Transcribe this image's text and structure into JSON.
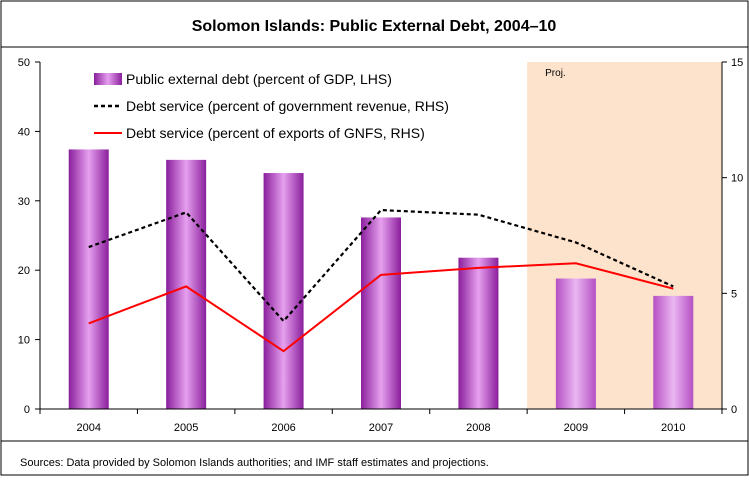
{
  "chart_data": {
    "type": "bar",
    "title": "Solomon Islands: Public External Debt, 2004–10",
    "categories": [
      "2004",
      "2005",
      "2006",
      "2007",
      "2008",
      "2009",
      "2010"
    ],
    "left_axis": {
      "min": 0,
      "max": 50,
      "ticks": [
        "0",
        "10",
        "20",
        "30",
        "40",
        "50"
      ]
    },
    "right_axis": {
      "min": 0,
      "max": 15,
      "ticks": [
        "0",
        "5",
        "10",
        "15"
      ]
    },
    "projection": {
      "label": "Proj.",
      "from_category": "2009",
      "color": "#fde3cc"
    },
    "series": [
      {
        "name": "Public external debt (percent of GDP, LHS)",
        "kind": "bar",
        "axis": "left",
        "color": "#b43cc8",
        "values": [
          37.4,
          35.9,
          34.0,
          27.6,
          21.8,
          18.8,
          16.3
        ]
      },
      {
        "name": "Debt service (percent of government revenue, RHS)",
        "kind": "line",
        "style": "dotted",
        "axis": "right",
        "color": "#000000",
        "values": [
          7.0,
          8.5,
          3.8,
          8.6,
          8.4,
          7.2,
          5.3
        ]
      },
      {
        "name": "Debt service (percent of exports of GNFS, RHS)",
        "kind": "line",
        "style": "solid",
        "axis": "right",
        "color": "#ff0000",
        "values": [
          3.7,
          5.3,
          2.5,
          5.8,
          6.1,
          6.3,
          5.2
        ]
      }
    ],
    "source": "Sources: Data provided by Solomon Islands authorities; and IMF staff estimates and projections."
  }
}
